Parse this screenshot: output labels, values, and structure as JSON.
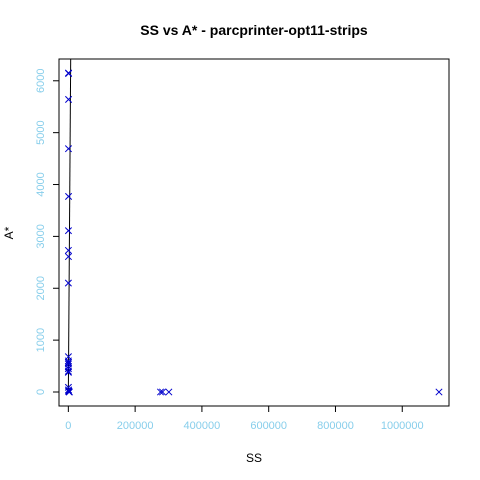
{
  "chart_data": {
    "type": "scatter",
    "title": "SS vs A* - parcprinter-opt11-strips",
    "xlabel": "SS",
    "ylabel": "A*",
    "xlim": [
      -28000,
      1140000
    ],
    "ylim": [
      -270,
      6420
    ],
    "xticks": [
      0,
      200000,
      400000,
      600000,
      800000,
      1000000
    ],
    "xtick_labels": [
      "0",
      "200000",
      "400000",
      "600000",
      "800000",
      "1000000"
    ],
    "yticks": [
      0,
      1000,
      2000,
      3000,
      4000,
      5000,
      6000
    ],
    "ytick_labels": [
      "0",
      "1000",
      "2000",
      "3000",
      "4000",
      "5000",
      "6000"
    ],
    "grid": false,
    "marker": "x",
    "colors": {
      "points": "#0000cc",
      "ticks": "#87ceeb",
      "line": "#000000",
      "frame": "#000000"
    },
    "points": [
      {
        "x": 500,
        "y": 6150
      },
      {
        "x": 700,
        "y": 6140
      },
      {
        "x": 600,
        "y": 5640
      },
      {
        "x": 400,
        "y": 4690
      },
      {
        "x": 600,
        "y": 3770
      },
      {
        "x": 300,
        "y": 3110
      },
      {
        "x": 200,
        "y": 2730
      },
      {
        "x": 300,
        "y": 2610
      },
      {
        "x": 100,
        "y": 2100
      },
      {
        "x": 200,
        "y": 680
      },
      {
        "x": 100,
        "y": 600
      },
      {
        "x": 200,
        "y": 570
      },
      {
        "x": 100,
        "y": 540
      },
      {
        "x": 200,
        "y": 490
      },
      {
        "x": 100,
        "y": 450
      },
      {
        "x": 200,
        "y": 400
      },
      {
        "x": 100,
        "y": 380
      },
      {
        "x": 200,
        "y": 90
      },
      {
        "x": 500,
        "y": 40
      },
      {
        "x": 800,
        "y": 20
      },
      {
        "x": 1200,
        "y": 10
      },
      {
        "x": 1800,
        "y": 5
      },
      {
        "x": 2500,
        "y": 2
      },
      {
        "x": 3000,
        "y": 0
      },
      {
        "x": 276000,
        "y": 0
      },
      {
        "x": 282000,
        "y": 0
      },
      {
        "x": 301000,
        "y": 0
      },
      {
        "x": 1110000,
        "y": 0
      }
    ],
    "fit_line": {
      "x": [
        0,
        7000
      ],
      "y": [
        0,
        6420
      ]
    }
  }
}
